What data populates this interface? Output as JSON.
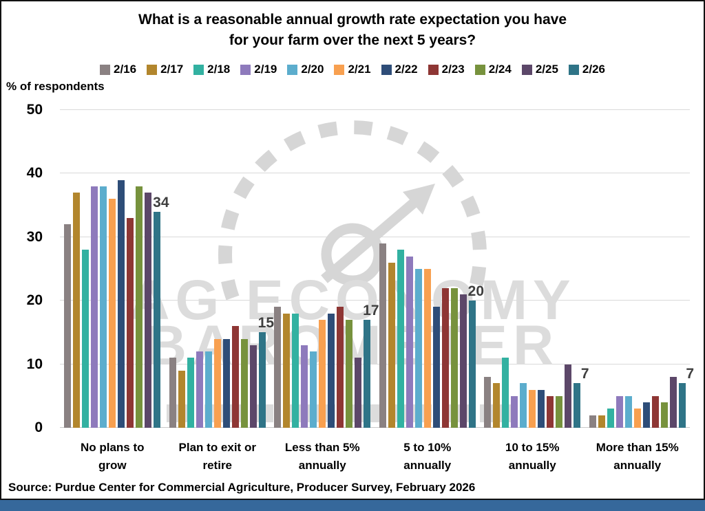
{
  "title": {
    "line1": "What is a reasonable annual growth rate expectation you have",
    "line2": "for your farm over the next 5 years?"
  },
  "y_axis": {
    "title": "% of respondents"
  },
  "watermark": {
    "line1": "AG ECONOMY",
    "line2": "BAROMETER"
  },
  "source": "Source: Purdue Center for Commercial Agriculture, Producer Survey, February 2026",
  "colors": {
    "bottom_strip": "#36689b",
    "gridline": "#d9d9d9",
    "data_label": "#3f3f3f",
    "watermark": "#dcdcdc"
  },
  "chart_data": {
    "type": "bar",
    "title": "What is a reasonable annual growth rate expectation you have for your farm over the next 5 years?",
    "xlabel": "",
    "ylabel": "% of respondents",
    "ylim": [
      0,
      50
    ],
    "ytick_step": 10,
    "grid": true,
    "legend_position": "top",
    "categories": [
      "No plans to grow",
      "Plan to exit or retire",
      "Less than 5% annually",
      "5 to 10% annually",
      "10 to 15% annually",
      "More than 15% annually"
    ],
    "series": [
      {
        "name": "2/16",
        "color": "#8a8182",
        "values": [
          32,
          11,
          19,
          29,
          8,
          2
        ]
      },
      {
        "name": "2/17",
        "color": "#b2862d",
        "values": [
          37,
          9,
          18,
          26,
          7,
          2
        ]
      },
      {
        "name": "2/18",
        "color": "#32b1a1",
        "values": [
          28,
          11,
          18,
          28,
          11,
          3
        ]
      },
      {
        "name": "2/19",
        "color": "#8e7abc",
        "values": [
          38,
          12,
          13,
          27,
          5,
          5
        ]
      },
      {
        "name": "2/20",
        "color": "#5cadcd",
        "values": [
          38,
          12,
          12,
          25,
          7,
          5
        ]
      },
      {
        "name": "2/21",
        "color": "#f8a050",
        "values": [
          36,
          14,
          17,
          25,
          6,
          3
        ]
      },
      {
        "name": "2/22",
        "color": "#2e4d78",
        "values": [
          39,
          14,
          18,
          19,
          6,
          4
        ]
      },
      {
        "name": "2/23",
        "color": "#8e3634",
        "values": [
          33,
          16,
          19,
          22,
          5,
          5
        ]
      },
      {
        "name": "2/24",
        "color": "#77923d",
        "values": [
          38,
          14,
          17,
          22,
          5,
          4
        ]
      },
      {
        "name": "2/25",
        "color": "#5c4769",
        "values": [
          37,
          13,
          11,
          21,
          10,
          8
        ]
      },
      {
        "name": "2/26",
        "color": "#2f7487",
        "values": [
          34,
          15,
          17,
          20,
          7,
          7
        ]
      }
    ],
    "data_labels": {
      "series": "2/26",
      "values": [
        34,
        15,
        17,
        20,
        7,
        7
      ]
    }
  }
}
